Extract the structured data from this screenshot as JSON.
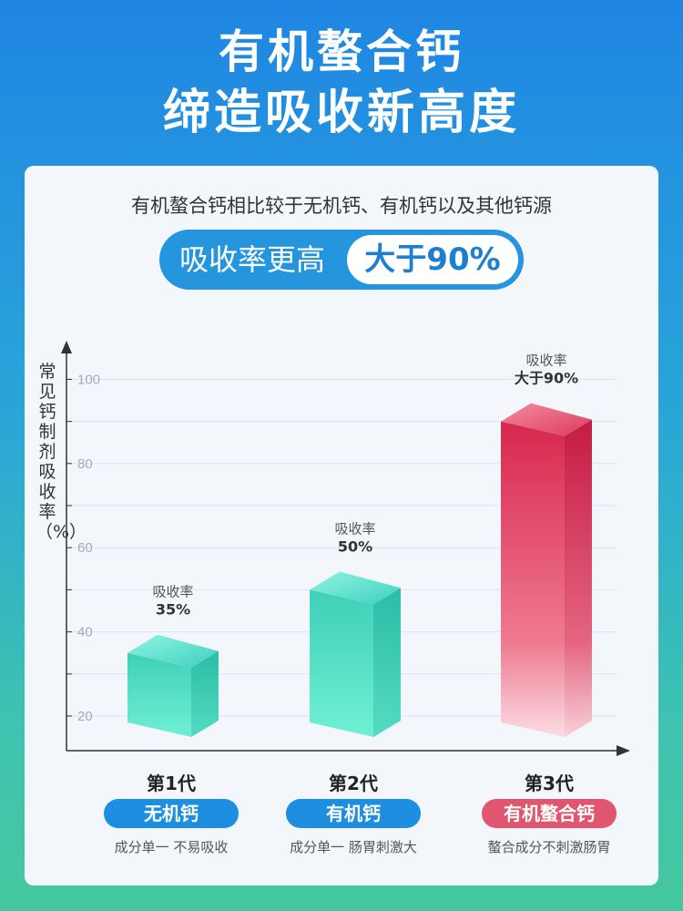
{
  "header": {
    "line1": "有机螯合钙",
    "line2": "缔造吸收新高度"
  },
  "card": {
    "subtitle": "有机螯合钙相比较于无机钙、有机钙以及其他钙源",
    "pill_label": "吸收率更高",
    "pill_value": "大于90%"
  },
  "colors": {
    "blue": "#1e8fe0",
    "teal": "#4fdcc4",
    "red": "#d9234d",
    "red_badge": "#e0566f"
  },
  "chart_data": {
    "type": "bar",
    "ylabel": "常见钙制剂吸收率（%）",
    "ylim": [
      15,
      105
    ],
    "yticks": [
      20,
      40,
      60,
      80,
      100
    ],
    "grid": true,
    "categories": [
      "第1代",
      "第2代",
      "第3代"
    ],
    "values": [
      35,
      50,
      90
    ],
    "data_labels": [
      {
        "top": "吸收率",
        "value": "35%"
      },
      {
        "top": "吸收率",
        "value": "50%"
      },
      {
        "top": "吸收率",
        "value": "大于90%"
      }
    ],
    "generations": [
      {
        "title": "第1代",
        "badge": "无机钙",
        "desc": "成分单一 不易吸收",
        "color": "blue"
      },
      {
        "title": "第2代",
        "badge": "有机钙",
        "desc": "成分单一 肠胃刺激大",
        "color": "blue"
      },
      {
        "title": "第3代",
        "badge": "有机螯合钙",
        "desc": "螯合成分不刺激肠胃",
        "color": "red"
      }
    ]
  }
}
